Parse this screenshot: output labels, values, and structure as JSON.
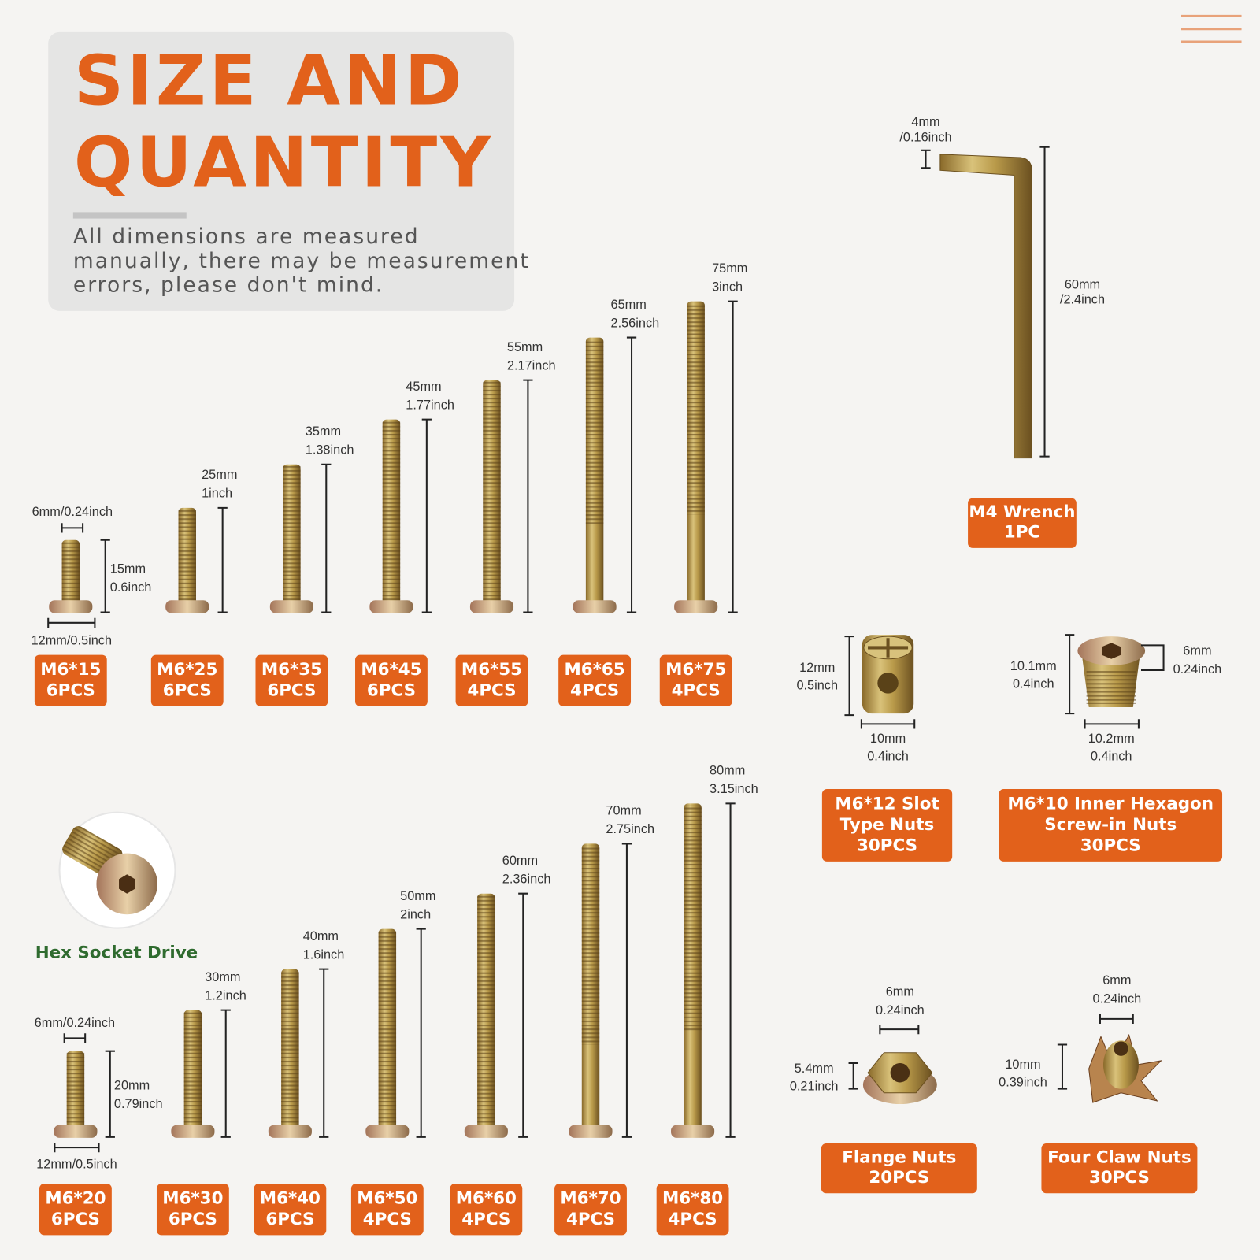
{
  "header": {
    "title_lines": [
      "SIZE AND",
      "QUANTITY"
    ],
    "note_lines": [
      "All dimensions are measured",
      "manually, there may be measurement",
      "errors, please don't mind."
    ]
  },
  "screws_top": [
    {
      "length": [
        "15mm",
        "0.6inch"
      ],
      "thread": "6mm/0.24inch",
      "head": "12mm/0.5inch",
      "label": [
        "M6*15",
        "6PCS"
      ]
    },
    {
      "length": [
        "25mm",
        "1inch"
      ],
      "label": [
        "M6*25",
        "6PCS"
      ]
    },
    {
      "length": [
        "35mm",
        "1.38inch"
      ],
      "label": [
        "M6*35",
        "6PCS"
      ]
    },
    {
      "length": [
        "45mm",
        "1.77inch"
      ],
      "label": [
        "M6*45",
        "6PCS"
      ]
    },
    {
      "length": [
        "55mm",
        "2.17inch"
      ],
      "label": [
        "M6*55",
        "4PCS"
      ]
    },
    {
      "length": [
        "65mm",
        "2.56inch"
      ],
      "label": [
        "M6*65",
        "4PCS"
      ]
    },
    {
      "length": [
        "75mm",
        "3inch"
      ],
      "label": [
        "M6*75",
        "4PCS"
      ]
    }
  ],
  "screws_bottom": [
    {
      "length": [
        "20mm",
        "0.79inch"
      ],
      "thread": "6mm/0.24inch",
      "head": "12mm/0.5inch",
      "label": [
        "M6*20",
        "6PCS"
      ]
    },
    {
      "length": [
        "30mm",
        "1.2inch"
      ],
      "label": [
        "M6*30",
        "6PCS"
      ]
    },
    {
      "length": [
        "40mm",
        "1.6inch"
      ],
      "label": [
        "M6*40",
        "6PCS"
      ]
    },
    {
      "length": [
        "50mm",
        "2inch"
      ],
      "label": [
        "M6*50",
        "4PCS"
      ]
    },
    {
      "length": [
        "60mm",
        "2.36inch"
      ],
      "label": [
        "M6*60",
        "4PCS"
      ]
    },
    {
      "length": [
        "70mm",
        "2.75inch"
      ],
      "label": [
        "M6*70",
        "4PCS"
      ]
    },
    {
      "length": [
        "80mm",
        "3.15inch"
      ],
      "label": [
        "M6*80",
        "4PCS"
      ]
    }
  ],
  "hex_socket": "Hex Socket Drive",
  "wrench": {
    "tip": [
      "4mm",
      "/0.16inch"
    ],
    "length": [
      "60mm",
      "/2.4inch"
    ],
    "label": [
      "M4 Wrench",
      "1PC"
    ]
  },
  "nuts": [
    {
      "height": [
        "12mm",
        "0.5inch"
      ],
      "width": [
        "10mm",
        "0.4inch"
      ],
      "label": [
        "M6*12 Slot",
        "Type Nuts",
        "30PCS"
      ]
    },
    {
      "height": [
        "10.1mm",
        "0.4inch"
      ],
      "width": [
        "10.2mm",
        "0.4inch"
      ],
      "top": [
        "6mm",
        "0.24inch"
      ],
      "label": [
        "M6*10 Inner Hexagon",
        "Screw-in Nuts",
        "30PCS"
      ]
    },
    {
      "top": [
        "6mm",
        "0.24inch"
      ],
      "height": [
        "5.4mm",
        "0.21inch"
      ],
      "label": [
        "Flange Nuts",
        "20PCS"
      ]
    },
    {
      "top": [
        "6mm",
        "0.24inch"
      ],
      "height": [
        "10mm",
        "0.39inch"
      ],
      "label": [
        "Four Claw Nuts",
        "30PCS"
      ]
    }
  ]
}
